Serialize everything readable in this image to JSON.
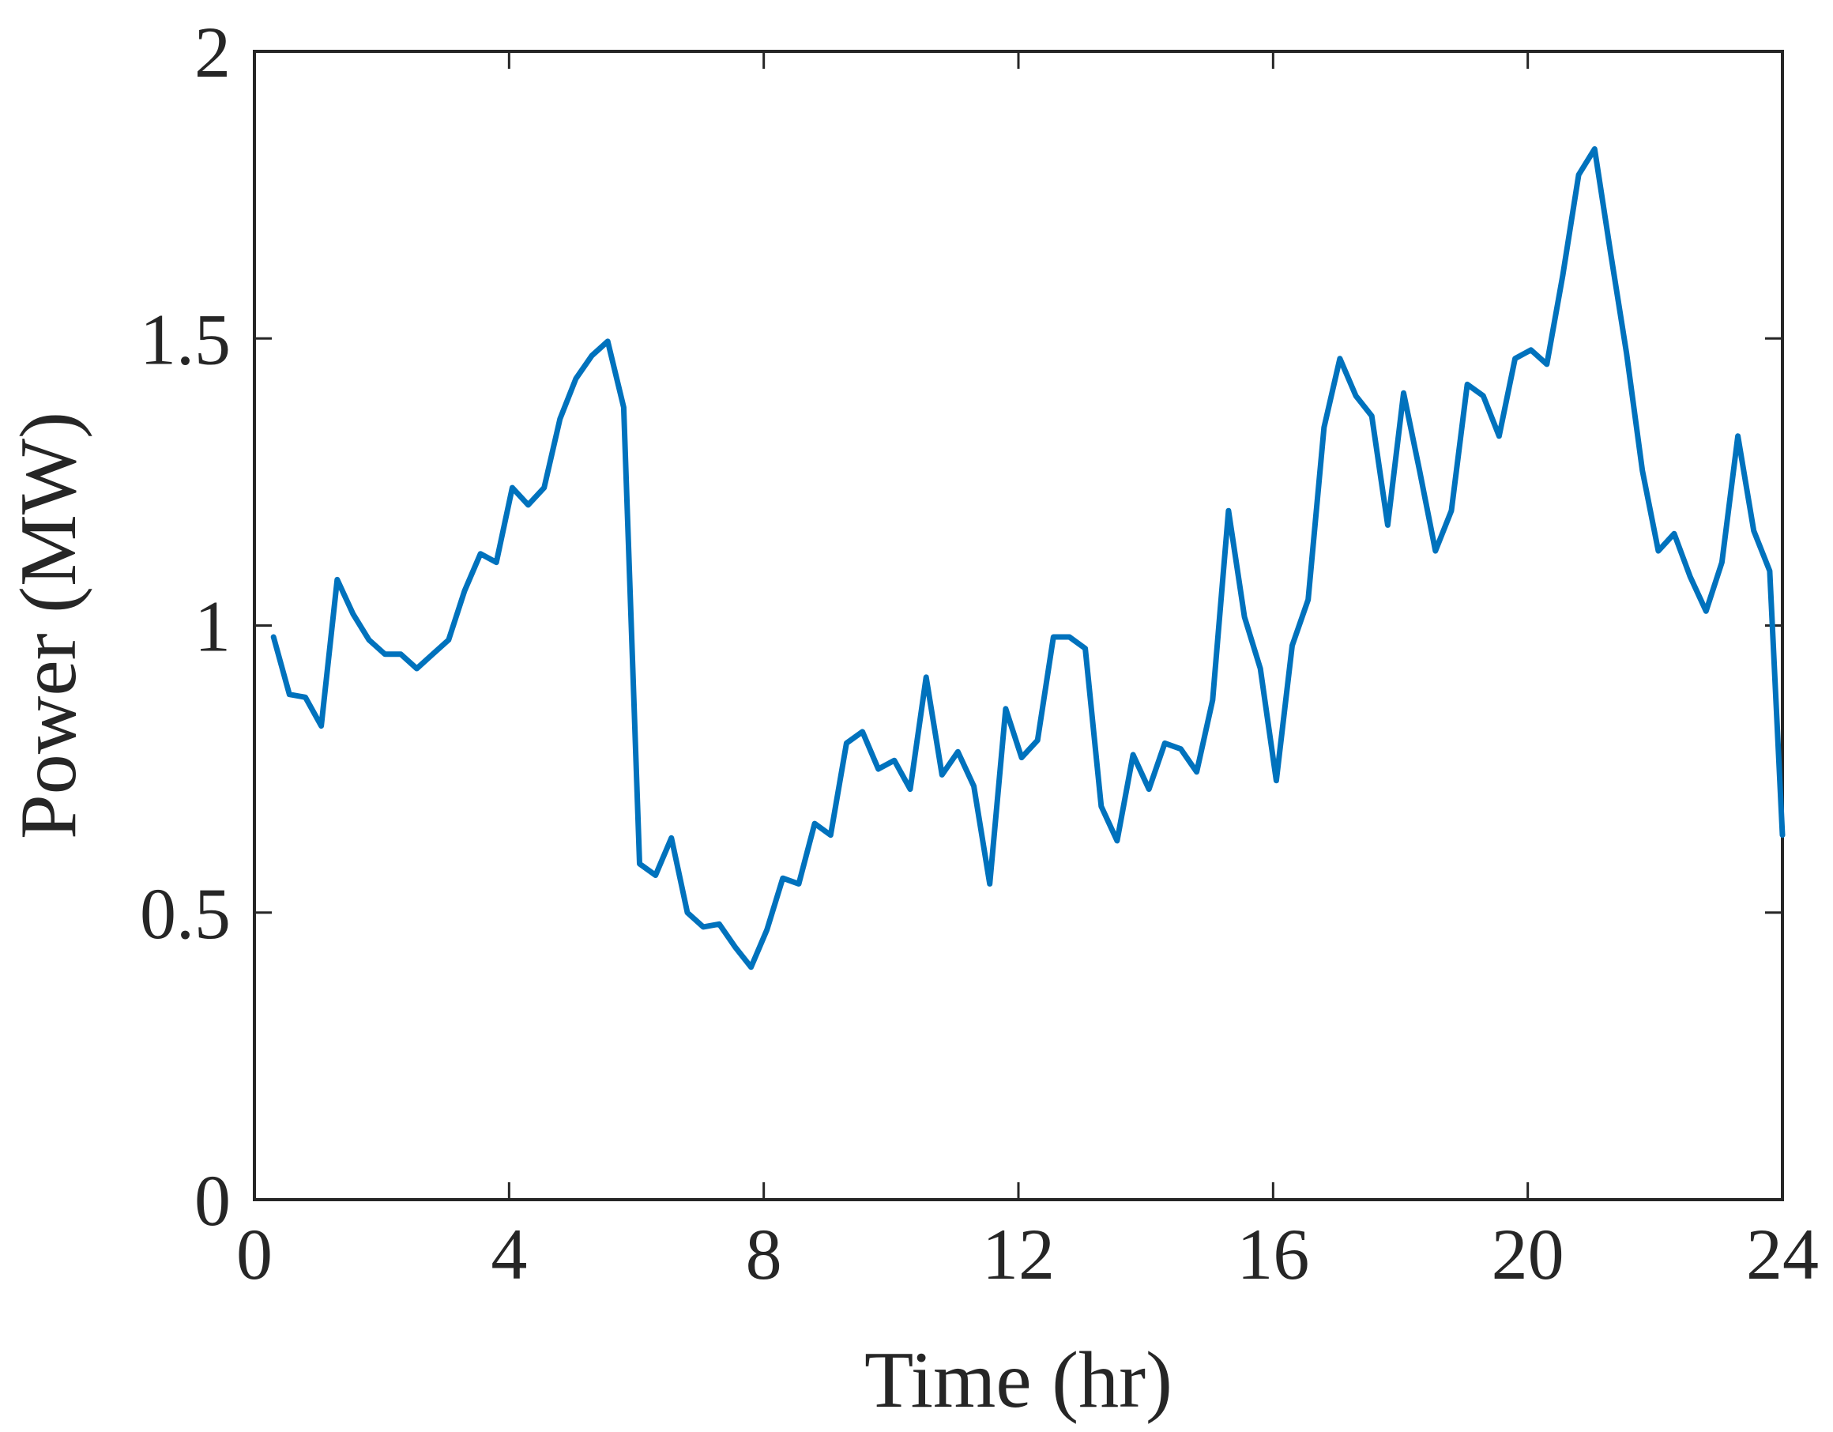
{
  "chart_data": {
    "type": "line",
    "title": "",
    "xlabel": "Time (hr)",
    "ylabel": "Power (MW)",
    "xlim": [
      0,
      24
    ],
    "ylim": [
      0,
      2
    ],
    "xticks": [
      0,
      4,
      8,
      12,
      16,
      20,
      24
    ],
    "xtick_labels": [
      "0",
      "4",
      "8",
      "12",
      "16",
      "20",
      "24"
    ],
    "yticks": [
      0,
      0.5,
      1,
      1.5,
      2
    ],
    "ytick_labels": [
      "0",
      "0.5",
      "1",
      "1.5",
      "2"
    ],
    "grid": false,
    "line_color": "#0072BD",
    "axis_color": "#262626",
    "series": [
      {
        "x": [
          0.3,
          0.55,
          0.8,
          1.05,
          1.3,
          1.55,
          1.8,
          2.05,
          2.3,
          2.55,
          2.8,
          3.05,
          3.3,
          3.55,
          3.8,
          4.05,
          4.3,
          4.55,
          4.8,
          5.05,
          5.3,
          5.55,
          5.8,
          6.05,
          6.3,
          6.55,
          6.8,
          7.05,
          7.3,
          7.55,
          7.8,
          8.05,
          8.3,
          8.55,
          8.8,
          9.05,
          9.3,
          9.55,
          9.8,
          10.05,
          10.3,
          10.55,
          10.8,
          11.05,
          11.3,
          11.55,
          11.8,
          12.05,
          12.3,
          12.55,
          12.8,
          13.05,
          13.3,
          13.55,
          13.8,
          14.05,
          14.3,
          14.55,
          14.8,
          15.05,
          15.3,
          15.55,
          15.8,
          16.05,
          16.3,
          16.55,
          16.8,
          17.05,
          17.3,
          17.55,
          17.8,
          18.05,
          18.3,
          18.55,
          18.8,
          19.05,
          19.3,
          19.55,
          19.8,
          20.05,
          20.3,
          20.55,
          20.8,
          21.05,
          21.3,
          21.55,
          21.8,
          22.05,
          22.3,
          22.55,
          22.8,
          23.05,
          23.3,
          23.55,
          23.8,
          24.0
        ],
        "values": [
          0.98,
          0.88,
          0.875,
          0.825,
          1.08,
          1.02,
          0.975,
          0.95,
          0.95,
          0.925,
          0.95,
          0.975,
          1.06,
          1.125,
          1.11,
          1.24,
          1.21,
          1.24,
          1.36,
          1.43,
          1.47,
          1.495,
          1.38,
          0.585,
          0.565,
          0.63,
          0.5,
          0.475,
          0.48,
          0.44,
          0.405,
          0.47,
          0.56,
          0.55,
          0.655,
          0.635,
          0.795,
          0.815,
          0.75,
          0.765,
          0.715,
          0.91,
          0.74,
          0.78,
          0.72,
          0.55,
          0.855,
          0.77,
          0.8,
          0.98,
          0.98,
          0.96,
          0.685,
          0.625,
          0.775,
          0.715,
          0.795,
          0.785,
          0.745,
          0.87,
          1.2,
          1.015,
          0.925,
          0.73,
          0.965,
          1.045,
          1.345,
          1.465,
          1.4,
          1.365,
          1.175,
          1.405,
          1.27,
          1.13,
          1.2,
          1.42,
          1.4,
          1.33,
          1.465,
          1.48,
          1.455,
          1.61,
          1.785,
          1.83,
          1.65,
          1.475,
          1.27,
          1.13,
          1.16,
          1.085,
          1.025,
          1.11,
          1.33,
          1.165,
          1.095,
          0.635
        ]
      }
    ]
  }
}
